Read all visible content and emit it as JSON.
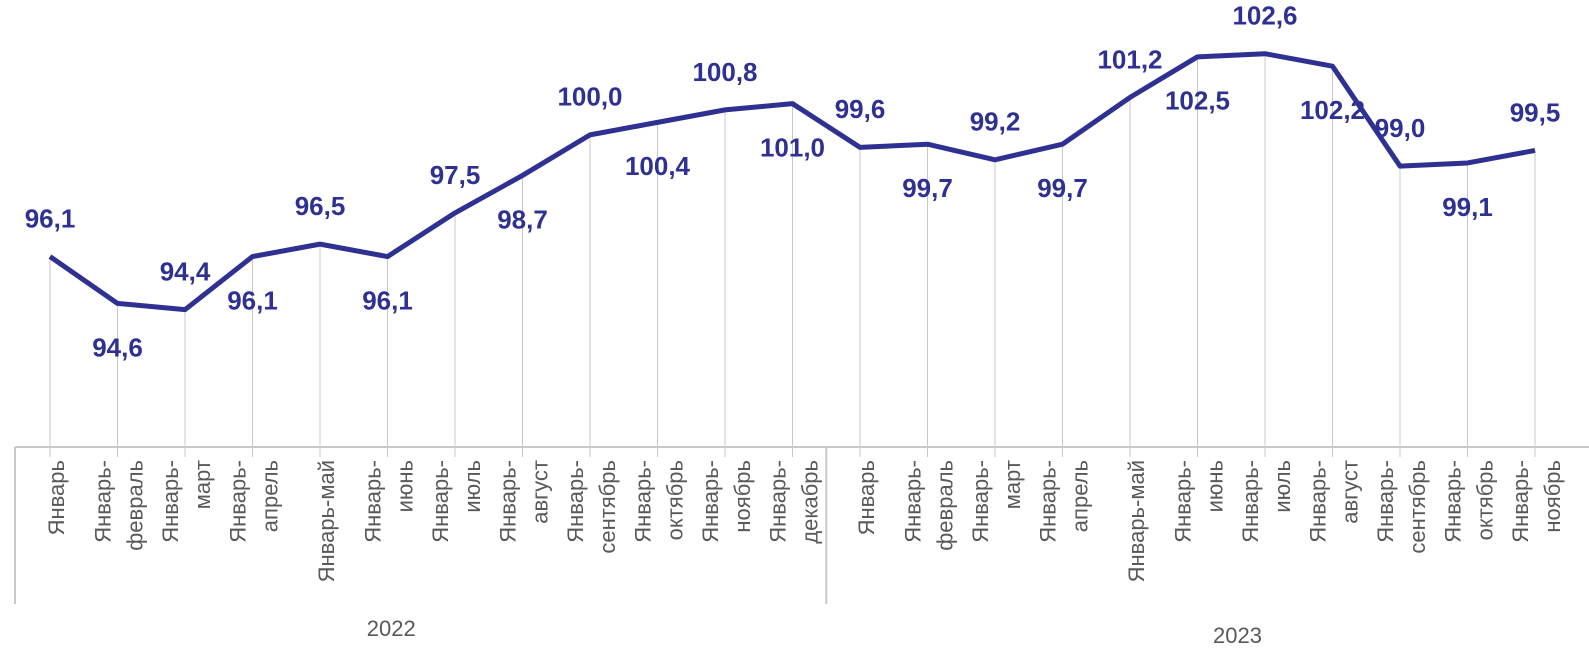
{
  "chart_data": {
    "type": "line",
    "groups": [
      {
        "label": "2022",
        "categories": [
          [
            "Январь"
          ],
          [
            "Январь-",
            "февраль"
          ],
          [
            "Январь-",
            "март"
          ],
          [
            "Январь-",
            "апрель"
          ],
          [
            "Январь-май"
          ],
          [
            "Январь-",
            "июнь"
          ],
          [
            "Январь-",
            "июль"
          ],
          [
            "Январь-",
            "август"
          ],
          [
            "Январь-",
            "сентябрь"
          ],
          [
            "Январь-",
            "октябрь"
          ],
          [
            "Январь-",
            "ноябрь"
          ],
          [
            "Январь-",
            "декабрь"
          ]
        ]
      },
      {
        "label": "2023",
        "categories": [
          [
            "Январь"
          ],
          [
            "Январь-",
            "февраль"
          ],
          [
            "Январь-",
            "март"
          ],
          [
            "Январь-",
            "апрель"
          ],
          [
            "Январь-май"
          ],
          [
            "Январь-",
            "июнь"
          ],
          [
            "Январь-",
            "июль"
          ],
          [
            "Январь-",
            "август"
          ],
          [
            "Январь-",
            "сентябрь"
          ],
          [
            "Январь-",
            "октябрь"
          ],
          [
            "Январь-",
            "ноябрь"
          ]
        ]
      }
    ],
    "series": [
      {
        "color": "#2e3192",
        "values": [
          96.1,
          94.6,
          94.4,
          96.1,
          96.5,
          96.1,
          97.5,
          98.7,
          100.0,
          100.4,
          100.8,
          101.0,
          99.6,
          99.7,
          99.2,
          99.7,
          101.2,
          102.5,
          102.6,
          102.2,
          99.0,
          99.1,
          99.5
        ],
        "value_labels": [
          "96,1",
          "94,6",
          "94,4",
          "96,1",
          "96,5",
          "96,1",
          "97,5",
          "98,7",
          "100,0",
          "100,4",
          "100,8",
          "101,0",
          "99,6",
          "99,7",
          "99,2",
          "99,7",
          "101,2",
          "102,5",
          "102,6",
          "102,2",
          "99,0",
          "99,1",
          "99,5"
        ]
      }
    ],
    "ylim": [
      90,
      104
    ]
  }
}
